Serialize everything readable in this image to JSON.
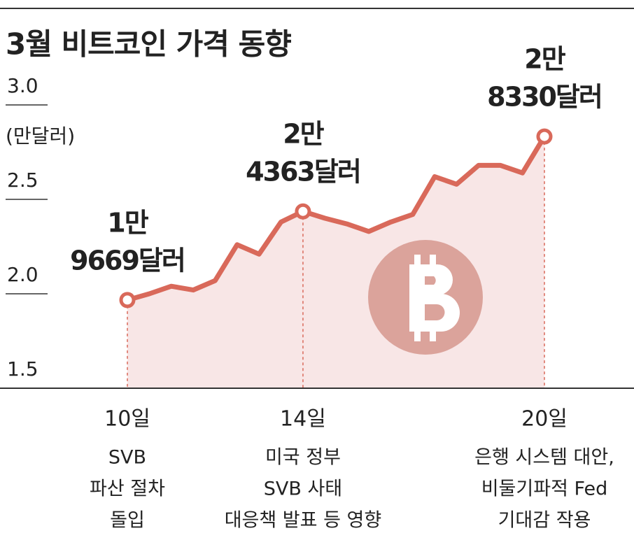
{
  "chart_data": {
    "type": "line",
    "title": "3월 비트코인 가격 동향",
    "y_label": "(만달러)",
    "categories": [
      "10일",
      null,
      null,
      null,
      null,
      null,
      null,
      null,
      "14일",
      null,
      null,
      null,
      null,
      null,
      null,
      null,
      null,
      null,
      null,
      "20일"
    ],
    "series": [
      {
        "name": null,
        "color": "#d9695a",
        "values": [
          1.9669,
          2.0,
          2.04,
          2.02,
          2.07,
          2.26,
          2.21,
          2.38,
          2.4363,
          2.4,
          2.37,
          2.33,
          2.38,
          2.42,
          2.62,
          2.58,
          2.68,
          2.68,
          2.64,
          2.833
        ],
        "value_labels": [
          [
            "1만",
            "9669달러"
          ],
          null,
          null,
          null,
          null,
          null,
          null,
          null,
          [
            "2만",
            "4363달러"
          ],
          null,
          null,
          null,
          null,
          null,
          null,
          null,
          null,
          null,
          null,
          [
            "2만",
            "8330달러"
          ]
        ]
      }
    ],
    "notes": [
      [
        "SVB",
        "파산 절차",
        "돌입"
      ],
      [
        "미국 정부",
        "SVB 사태",
        "대응책 발표 등 영향"
      ],
      [
        "은행 시스템 대안,",
        "비둘기파적 Fed",
        "기대감 작용"
      ]
    ],
    "ylim": [
      1.5,
      3.0
    ],
    "yticks": [
      {
        "value": 1.5,
        "label": "1.5"
      },
      {
        "value": 2,
        "label": "2.0"
      },
      {
        "value": 2.5,
        "label": "2.5"
      },
      {
        "value": 3,
        "label": "3.0"
      }
    ]
  }
}
